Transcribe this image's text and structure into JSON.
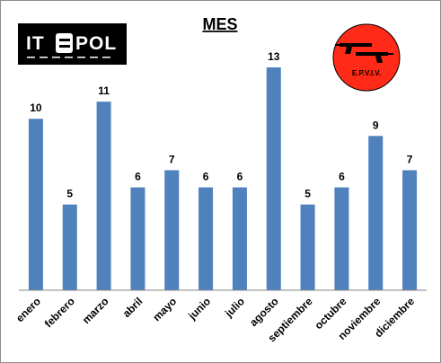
{
  "chart_data": {
    "type": "bar",
    "title": "MES",
    "categories": [
      "enero",
      "febrero",
      "marzo",
      "abril",
      "mayo",
      "junio",
      "julio",
      "agosto",
      "septiembre",
      "octubre",
      "noviembre",
      "diciembre"
    ],
    "values": [
      10,
      5,
      11,
      6,
      7,
      6,
      6,
      13,
      5,
      6,
      9,
      7
    ],
    "ylim": [
      0,
      13.6
    ],
    "grid": false,
    "legend": "none",
    "bar_color": "#4f81bd"
  },
  "logos": {
    "left": {
      "text_before": "IT",
      "text_after": "POL",
      "name": "itepol-logo"
    },
    "right": {
      "text": "E.P.V.I.V.",
      "name": "epviv-logo",
      "color": "#ff2a17"
    }
  }
}
